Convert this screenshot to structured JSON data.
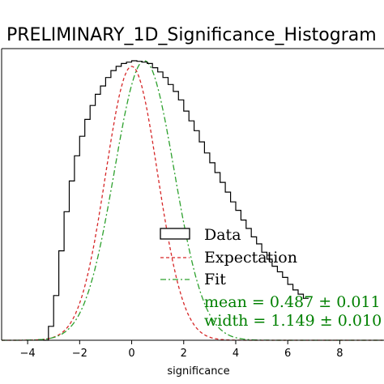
{
  "chart_data": {
    "type": "histogram",
    "title": "PRELIMINARY_1D_Significance_Histogram",
    "xlabel": "significance",
    "ylabel": "",
    "xlim": [
      -5,
      9.7
    ],
    "ylim": [
      0,
      1.0
    ],
    "x_ticks": [
      -4,
      -2,
      0,
      2,
      4,
      6,
      8
    ],
    "x_tick_labels": [
      "−4",
      "−2",
      "0",
      "2",
      "4",
      "6",
      "8"
    ],
    "grid": false,
    "legend_position": "lower-right",
    "series": [
      {
        "name": "Data",
        "kind": "step",
        "color": "#000000",
        "x": [
          -3.4,
          -3.2,
          -3.0,
          -2.8,
          -2.6,
          -2.4,
          -2.2,
          -2.0,
          -1.8,
          -1.6,
          -1.4,
          -1.2,
          -1.0,
          -0.8,
          -0.6,
          -0.4,
          -0.2,
          0.0,
          0.2,
          0.4,
          0.6,
          0.8,
          1.0,
          1.2,
          1.4,
          1.6,
          1.8,
          2.0,
          2.2,
          2.4,
          2.6,
          2.8,
          3.0,
          3.2,
          3.4,
          3.6,
          3.8,
          4.0,
          4.2,
          4.4,
          4.6,
          4.8,
          5.0,
          5.2,
          5.4,
          5.6,
          5.8,
          6.0,
          6.2,
          6.4,
          6.6
        ],
        "y": [
          0.0,
          0.05,
          0.16,
          0.32,
          0.46,
          0.57,
          0.66,
          0.73,
          0.79,
          0.84,
          0.88,
          0.91,
          0.94,
          0.965,
          0.98,
          0.99,
          0.995,
          1.0,
          0.998,
          0.995,
          0.99,
          0.975,
          0.96,
          0.94,
          0.915,
          0.89,
          0.86,
          0.82,
          0.785,
          0.75,
          0.71,
          0.67,
          0.635,
          0.6,
          0.565,
          0.53,
          0.495,
          0.465,
          0.43,
          0.4,
          0.37,
          0.345,
          0.315,
          0.29,
          0.265,
          0.245,
          0.225,
          0.2,
          0.18,
          0.165,
          0.15
        ]
      },
      {
        "name": "Expectation",
        "kind": "gaussian",
        "color": "#d62728",
        "style": "dashed",
        "mean": 0.0,
        "width": 1.0,
        "peak": 0.98
      },
      {
        "name": "Fit",
        "kind": "gaussian",
        "color": "#2ca02c",
        "style": "dashdot",
        "mean": 0.487,
        "width": 1.149,
        "peak": 1.0
      }
    ],
    "annotations": [
      {
        "text": "mean = 0.487 ± 0.011",
        "color": "#008000"
      },
      {
        "text": "width = 1.149 ± 0.010",
        "color": "#008000"
      }
    ]
  }
}
